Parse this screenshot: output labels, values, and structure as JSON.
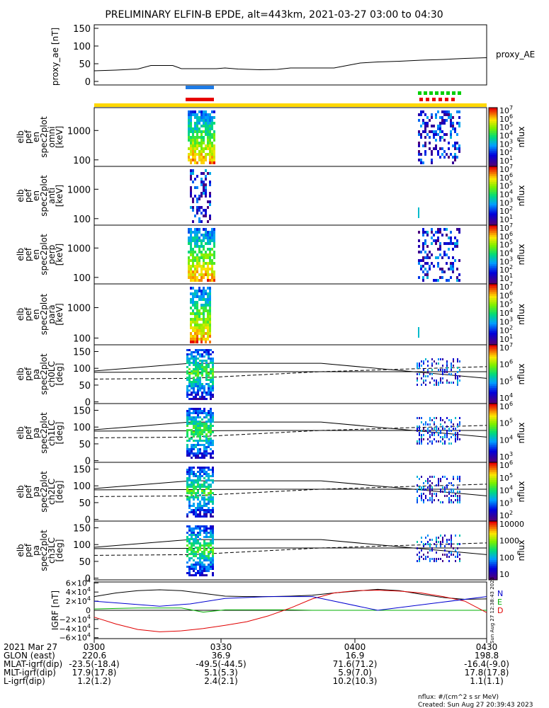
{
  "title": "PRELIMINARY ELFIN-B EPDE, alt=443km, 2021-03-27 03:00 to 04:30",
  "colors": {
    "orange": "#ffd800",
    "blue_bar": "#1e7be6",
    "red_bar": "#e60000",
    "green_bar": "#00d000"
  },
  "ae": {
    "ylabel": "proxy_ae [nT]",
    "legend": "proxy_AE",
    "ticks": [
      "150",
      "100",
      "50",
      "0"
    ],
    "data": [
      [
        0,
        30
      ],
      [
        5,
        32
      ],
      [
        10,
        35
      ],
      [
        13,
        45
      ],
      [
        18,
        45
      ],
      [
        20,
        36
      ],
      [
        28,
        36
      ],
      [
        30,
        38
      ],
      [
        33,
        35
      ],
      [
        38,
        33
      ],
      [
        42,
        34
      ],
      [
        45,
        38
      ],
      [
        55,
        38
      ],
      [
        58,
        45
      ],
      [
        61,
        52
      ],
      [
        65,
        55
      ],
      [
        70,
        57
      ],
      [
        75,
        60
      ],
      [
        80,
        62
      ],
      [
        85,
        65
      ],
      [
        90,
        67
      ]
    ]
  },
  "spectra": [
    {
      "label": [
        "elb",
        "pef",
        "en",
        "spec2plot",
        "omni",
        "[keV]"
      ],
      "ticks": [
        "1000",
        "100"
      ],
      "cbar_ticks": [
        "10^7",
        "10^6",
        "10^5",
        "10^4",
        "10^3",
        "10^2",
        "10^1"
      ],
      "cbar_label": "nflux"
    },
    {
      "label": [
        "elb",
        "pef",
        "en",
        "spec2plot",
        "anti",
        "[keV]"
      ],
      "ticks": [
        "1000",
        "100"
      ],
      "cbar_ticks": [
        "10^7",
        "10^6",
        "10^5",
        "10^4",
        "10^3",
        "10^2",
        "10^1"
      ],
      "cbar_label": "nflux"
    },
    {
      "label": [
        "elb",
        "pef",
        "en",
        "spec2plot",
        "perp",
        "[keV]"
      ],
      "ticks": [
        "1000",
        "100"
      ],
      "cbar_ticks": [
        "10^7",
        "10^6",
        "10^5",
        "10^4",
        "10^3",
        "10^2",
        "10^1"
      ],
      "cbar_label": "nflux"
    },
    {
      "label": [
        "elb",
        "pef",
        "en",
        "spec2plot",
        "para",
        "[keV]"
      ],
      "ticks": [
        "1000",
        "100"
      ],
      "cbar_ticks": [
        "10^7",
        "10^6",
        "10^5",
        "10^4",
        "10^3",
        "10^2",
        "10^1"
      ],
      "cbar_label": "nflux"
    }
  ],
  "pitch": [
    {
      "label": [
        "elb",
        "pef",
        "pa",
        "spec2plot",
        "ch0LC",
        "[deg]"
      ],
      "ticks": [
        "150",
        "100",
        "50",
        "0"
      ],
      "cbar_ticks": [
        "10^7",
        "10^6",
        "10^5",
        "10^4"
      ],
      "cbar_label": "nflux"
    },
    {
      "label": [
        "elb",
        "pef",
        "pa",
        "spec2plot",
        "ch1LC",
        "[deg]"
      ],
      "ticks": [
        "150",
        "100",
        "50",
        "0"
      ],
      "cbar_ticks": [
        "10^6",
        "10^5",
        "10^4",
        "10^3"
      ],
      "cbar_label": "nflux"
    },
    {
      "label": [
        "elb",
        "pef",
        "pa",
        "spec2plot",
        "ch2LC",
        "[deg]"
      ],
      "ticks": [
        "150",
        "100",
        "50",
        "0"
      ],
      "cbar_ticks": [
        "10^6",
        "10^5",
        "10^4",
        "10^3",
        "10^2"
      ],
      "cbar_label": "nflux"
    },
    {
      "label": [
        "elb",
        "pef",
        "pa",
        "spec2plot",
        "ch3LC",
        "[deg]"
      ],
      "ticks": [
        "150",
        "100",
        "50",
        "0"
      ],
      "cbar_ticks": [
        "10000",
        "1000",
        "100",
        "10"
      ],
      "cbar_label": "nflux"
    }
  ],
  "igrf": {
    "ylabel": "IGRF [nT]",
    "ticks": [
      "6×10^4",
      "4×10^4",
      "2×10^4",
      "0",
      "−2×10^4",
      "−4×10^4",
      "−6×10^4"
    ],
    "legend": [
      "N",
      "E",
      "D"
    ],
    "stamp": [
      "Sun Aug 27 12:38:43 2023"
    ]
  },
  "footer": {
    "rows": [
      {
        "label": "2021 Mar 27",
        "vals": [
          "0300",
          "0330",
          "0400",
          "0430"
        ]
      },
      {
        "label": "GLON (east)",
        "vals": [
          "220.6",
          "36.9",
          "16.9",
          "198.8"
        ]
      },
      {
        "label": "MLAT-igrf(dip)",
        "vals": [
          "-23.5(-18.4)",
          "-49.5(-44.5)",
          "71.6(71.2)",
          "-16.4(-9.0)"
        ]
      },
      {
        "label": "MLT-igrf(dip)",
        "vals": [
          "17.9(17.8)",
          "5.1(5.3)",
          "5.9(7.0)",
          "17.8(17.8)"
        ]
      },
      {
        "label": "L-igrf(dip)",
        "vals": [
          "1.2(1.2)",
          "2.4(2.1)",
          "10.2(10.3)",
          "1.1(1.1)"
        ]
      }
    ],
    "note": "nflux: #/(cm^2 s sr MeV)",
    "created": "Created: Sun Aug 27 20:39:43 2023"
  },
  "chart_data": {
    "type": "line",
    "x_unit": "minutes after 2021-03-27 03:00",
    "xlim": [
      0,
      90
    ],
    "panels": [
      {
        "name": "proxy_ae",
        "ylim": [
          -10,
          160
        ],
        "series": [
          {
            "name": "proxy_AE",
            "x": [
              0,
              5,
              10,
              13,
              18,
              20,
              28,
              30,
              33,
              38,
              42,
              45,
              55,
              58,
              61,
              65,
              70,
              75,
              80,
              85,
              90
            ],
            "values": [
              30,
              32,
              35,
              45,
              45,
              36,
              36,
              38,
              35,
              33,
              34,
              38,
              38,
              45,
              52,
              55,
              57,
              60,
              62,
              65,
              67
            ]
          }
        ]
      },
      {
        "name": "IGRF",
        "ylim": [
          -60000,
          60000
        ],
        "series": [
          {
            "name": "N",
            "x": [
              0,
              5,
              10,
              15,
              20,
              25,
              30,
              35,
              40,
              45,
              50,
              55,
              60,
              65,
              70,
              75,
              80,
              85,
              90
            ],
            "values": [
              30000,
              38000,
              43000,
              45000,
              43000,
              37000,
              31000,
              30000,
              30000,
              31000,
              33000,
              38000,
              42000,
              46000,
              43000,
              35000,
              28000,
              24000,
              25000
            ]
          },
          {
            "name": "E",
            "x": [
              0,
              5,
              10,
              15,
              20,
              25,
              30,
              35,
              40,
              45,
              50,
              55,
              60,
              65,
              70,
              75,
              80,
              85,
              90
            ],
            "values": [
              3000,
              4000,
              5000,
              5000,
              5000,
              -4000,
              1000,
              1000,
              1000,
              1000,
              0,
              0,
              0,
              0,
              0,
              0,
              0,
              0,
              0
            ]
          },
          {
            "name": "D",
            "x": [
              0,
              5,
              10,
              15,
              20,
              25,
              30,
              35,
              40,
              45,
              50,
              55,
              60,
              65,
              70,
              75,
              80,
              85,
              90
            ],
            "values": [
              -15000,
              -30000,
              -42000,
              -47000,
              -45000,
              -40000,
              -33000,
              -25000,
              -12000,
              5000,
              25000,
              38000,
              43000,
              44000,
              42000,
              38000,
              30000,
              20000,
              -5000
            ]
          }
        ]
      }
    ]
  }
}
